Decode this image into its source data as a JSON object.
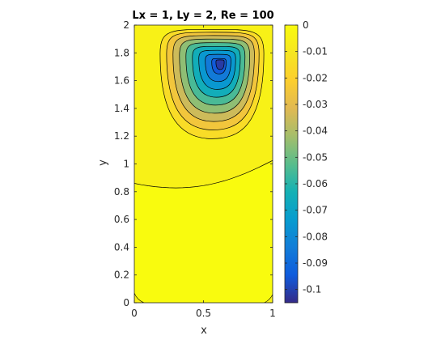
{
  "chart_data": {
    "type": "contour",
    "title": "Lx = 1, Ly = 2, Re = 100",
    "xlabel": "x",
    "ylabel": "y",
    "xlim": [
      0,
      1
    ],
    "ylim": [
      0,
      2
    ],
    "xticks": [
      0,
      0.5,
      1
    ],
    "xtick_labels": [
      "0",
      "0.5",
      "1"
    ],
    "yticks": [
      0,
      0.2,
      0.4,
      0.6,
      0.8,
      1,
      1.2,
      1.4,
      1.6,
      1.8,
      2
    ],
    "ytick_labels": [
      "0",
      "0.2",
      "0.4",
      "0.6",
      "0.8",
      "1",
      "1.2",
      "1.4",
      "1.6",
      "1.8",
      "2"
    ],
    "colorbar": {
      "range": [
        -0.105,
        0
      ],
      "ticks": [
        0,
        -0.01,
        -0.02,
        -0.03,
        -0.04,
        -0.05,
        -0.06,
        -0.07,
        -0.08,
        -0.09,
        -0.1
      ],
      "tick_labels": [
        "0",
        "-0.01",
        "-0.02",
        "-0.03",
        "-0.04",
        "-0.05",
        "-0.06",
        "-0.07",
        "-0.08",
        "-0.09",
        "-0.1"
      ],
      "colormap": "parula"
    },
    "primary_vortex": {
      "center_x": 0.62,
      "center_y": 1.72,
      "min_value": -0.103
    },
    "secondary_boundary_y_at_x0": 0.86,
    "secondary_boundary_y_at_x1": 1.05,
    "contour_levels": [
      -0.01,
      -0.02,
      -0.03,
      -0.04,
      -0.05,
      -0.06,
      -0.07,
      -0.08,
      -0.09,
      -0.1
    ],
    "grid": false
  }
}
